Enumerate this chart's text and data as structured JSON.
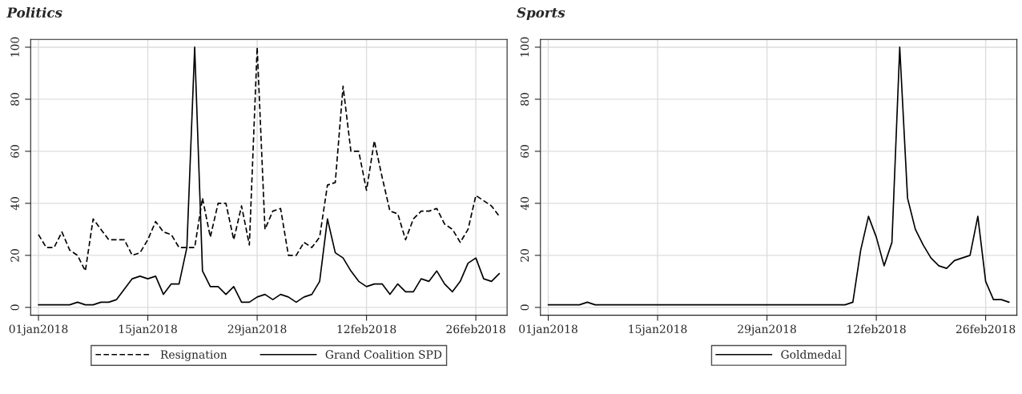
{
  "chart_data": [
    {
      "type": "line",
      "title": "Politics",
      "x": [
        "2018-01-01",
        "2018-01-02",
        "2018-01-03",
        "2018-01-04",
        "2018-01-05",
        "2018-01-06",
        "2018-01-07",
        "2018-01-08",
        "2018-01-09",
        "2018-01-10",
        "2018-01-11",
        "2018-01-12",
        "2018-01-13",
        "2018-01-14",
        "2018-01-15",
        "2018-01-16",
        "2018-01-17",
        "2018-01-18",
        "2018-01-19",
        "2018-01-20",
        "2018-01-21",
        "2018-01-22",
        "2018-01-23",
        "2018-01-24",
        "2018-01-25",
        "2018-01-26",
        "2018-01-27",
        "2018-01-28",
        "2018-01-29",
        "2018-01-30",
        "2018-01-31",
        "2018-02-01",
        "2018-02-02",
        "2018-02-03",
        "2018-02-04",
        "2018-02-05",
        "2018-02-06",
        "2018-02-07",
        "2018-02-08",
        "2018-02-09",
        "2018-02-10",
        "2018-02-11",
        "2018-02-12",
        "2018-02-13",
        "2018-02-14",
        "2018-02-15",
        "2018-02-16",
        "2018-02-17",
        "2018-02-18",
        "2018-02-19",
        "2018-02-20",
        "2018-02-21",
        "2018-02-22",
        "2018-02-23",
        "2018-02-24",
        "2018-02-25",
        "2018-02-26",
        "2018-02-27",
        "2018-02-28",
        "2018-03-01"
      ],
      "series": [
        {
          "name": "Resignation",
          "color": "#000000",
          "line_style": "dashed",
          "values": [
            28,
            23,
            23,
            29,
            22,
            20,
            14,
            34,
            30,
            26,
            26,
            26,
            20,
            21,
            26,
            33,
            29,
            28,
            23,
            23,
            23,
            42,
            27,
            40,
            40,
            26,
            39,
            24,
            100,
            30,
            37,
            38,
            20,
            20,
            25,
            23,
            27,
            47,
            48,
            85,
            60,
            60,
            45,
            64,
            50,
            37,
            36,
            26,
            34,
            37,
            37,
            38,
            32,
            30,
            25,
            30,
            43,
            41,
            39,
            35
          ]
        },
        {
          "name": "Grand Coalition SPD",
          "color": "#000000",
          "line_style": "solid",
          "values": [
            1,
            1,
            1,
            1,
            1,
            2,
            1,
            1,
            2,
            2,
            3,
            7,
            11,
            12,
            11,
            12,
            5,
            9,
            9,
            23,
            100,
            14,
            8,
            8,
            5,
            8,
            2,
            2,
            4,
            5,
            3,
            5,
            4,
            2,
            4,
            5,
            10,
            34,
            21,
            19,
            14,
            10,
            8,
            9,
            9,
            5,
            9,
            6,
            6,
            11,
            10,
            14,
            9,
            6,
            10,
            17,
            19,
            11,
            10,
            13
          ]
        }
      ],
      "xlim": [
        "2017-12-31",
        "2018-03-02"
      ],
      "xticks": [
        {
          "value": "2018-01-01",
          "label": "01jan2018"
        },
        {
          "value": "2018-01-15",
          "label": "15jan2018"
        },
        {
          "value": "2018-01-29",
          "label": "29jan2018"
        },
        {
          "value": "2018-02-12",
          "label": "12feb2018"
        },
        {
          "value": "2018-02-26",
          "label": "26feb2018"
        }
      ],
      "ylim": [
        -3,
        103
      ],
      "yticks": [
        0,
        20,
        40,
        60,
        80,
        100
      ],
      "grid": true,
      "legend": "bottom"
    },
    {
      "type": "line",
      "title": "Sports",
      "x": [
        "2018-01-01",
        "2018-01-02",
        "2018-01-03",
        "2018-01-04",
        "2018-01-05",
        "2018-01-06",
        "2018-01-07",
        "2018-01-08",
        "2018-01-09",
        "2018-01-10",
        "2018-01-11",
        "2018-01-12",
        "2018-01-13",
        "2018-01-14",
        "2018-01-15",
        "2018-01-16",
        "2018-01-17",
        "2018-01-18",
        "2018-01-19",
        "2018-01-20",
        "2018-01-21",
        "2018-01-22",
        "2018-01-23",
        "2018-01-24",
        "2018-01-25",
        "2018-01-26",
        "2018-01-27",
        "2018-01-28",
        "2018-01-29",
        "2018-01-30",
        "2018-01-31",
        "2018-02-01",
        "2018-02-02",
        "2018-02-03",
        "2018-02-04",
        "2018-02-05",
        "2018-02-06",
        "2018-02-07",
        "2018-02-08",
        "2018-02-09",
        "2018-02-10",
        "2018-02-11",
        "2018-02-12",
        "2018-02-13",
        "2018-02-14",
        "2018-02-15",
        "2018-02-16",
        "2018-02-17",
        "2018-02-18",
        "2018-02-19",
        "2018-02-20",
        "2018-02-21",
        "2018-02-22",
        "2018-02-23",
        "2018-02-24",
        "2018-02-25",
        "2018-02-26",
        "2018-02-27",
        "2018-02-28",
        "2018-03-01"
      ],
      "series": [
        {
          "name": "Goldmedal",
          "color": "#000000",
          "line_style": "solid",
          "values": [
            1,
            1,
            1,
            1,
            1,
            2,
            1,
            1,
            1,
            1,
            1,
            1,
            1,
            1,
            1,
            1,
            1,
            1,
            1,
            1,
            1,
            1,
            1,
            1,
            1,
            1,
            1,
            1,
            1,
            1,
            1,
            1,
            1,
            1,
            1,
            1,
            1,
            1,
            1,
            2,
            22,
            35,
            27,
            16,
            25,
            100,
            42,
            30,
            24,
            19,
            16,
            15,
            18,
            19,
            20,
            35,
            10,
            3,
            3,
            2
          ]
        }
      ],
      "xlim": [
        "2017-12-31",
        "2018-03-02"
      ],
      "xticks": [
        {
          "value": "2018-01-01",
          "label": "01jan2018"
        },
        {
          "value": "2018-01-15",
          "label": "15jan2018"
        },
        {
          "value": "2018-01-29",
          "label": "29jan2018"
        },
        {
          "value": "2018-02-12",
          "label": "12feb2018"
        },
        {
          "value": "2018-02-26",
          "label": "26feb2018"
        }
      ],
      "ylim": [
        -3,
        103
      ],
      "yticks": [
        0,
        20,
        40,
        60,
        80,
        100
      ],
      "grid": true,
      "legend": "bottom"
    }
  ]
}
